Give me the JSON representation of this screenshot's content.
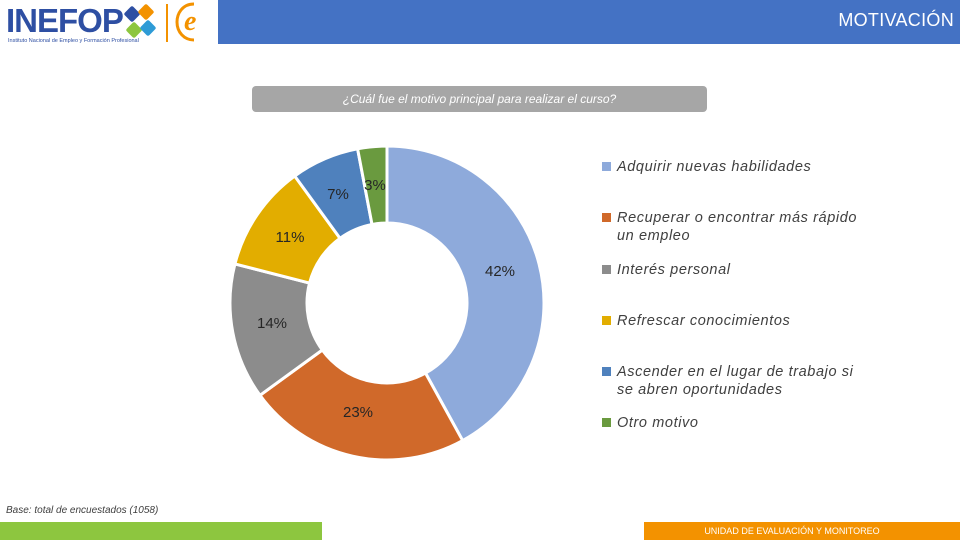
{
  "header": {
    "logo_text": "INEFOP",
    "logo_subtitle": "Instituto Nacional de Empleo y Formación Profesional",
    "logo_e": "e",
    "title": "MOTIVACIÓN",
    "bar_color": "#4472c4"
  },
  "question": "¿Cuál fue el motivo principal para realizar el curso?",
  "chart_data": {
    "type": "pie",
    "donut": true,
    "title": "¿Cuál fue el motivo principal para realizar el curso?",
    "legend_position": "right",
    "slices": [
      {
        "label": "Adquirir nuevas habilidades",
        "value": 42,
        "display": "42%",
        "color": "#8eaadb"
      },
      {
        "label": "Recuperar o encontrar más rápido un empleo",
        "value": 23,
        "display": "23%",
        "color": "#d0692a"
      },
      {
        "label": "Interés personal",
        "value": 14,
        "display": "14%",
        "color": "#8c8c8c"
      },
      {
        "label": "Refrescar conocimientos",
        "value": 11,
        "display": "11%",
        "color": "#e2ad00"
      },
      {
        "label": "Ascender en el lugar de trabajo si se abren oportunidades",
        "value": 7,
        "display": "7%",
        "color": "#4f81bd"
      },
      {
        "label": "Otro motivo",
        "value": 3,
        "display": "3%",
        "color": "#6a9a3f"
      }
    ]
  },
  "legend": {
    "items": [
      {
        "line1": "Adquirir nuevas habilidades",
        "line2": ""
      },
      {
        "line1": "Recuperar o encontrar más rápido",
        "line2": "un empleo"
      },
      {
        "line1": "Interés personal",
        "line2": ""
      },
      {
        "line1": "Refrescar conocimientos",
        "line2": ""
      },
      {
        "line1": "Ascender en el lugar de trabajo si",
        "line2": "se abren oportunidades"
      },
      {
        "line1": "Otro motivo",
        "line2": ""
      }
    ]
  },
  "base_note": "Base: total de encuestados (1058)",
  "footer": {
    "text": "UNIDAD DE EVALUACIÓN Y MONITOREO",
    "left_color": "#8dc63f",
    "right_color": "#f39200"
  }
}
